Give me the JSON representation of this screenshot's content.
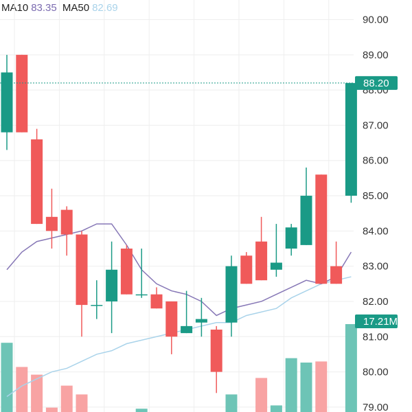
{
  "legend": {
    "ma10_label": "MA10",
    "ma10_value": "83.35",
    "ma50_label": "MA50",
    "ma50_value": "82.69"
  },
  "colors": {
    "up": "#1a9a86",
    "down": "#f05a5a",
    "up_volume": "#6dc4b6",
    "down_volume": "#f8a3a3",
    "ma10": "#8677b6",
    "ma50": "#a9d3ea",
    "grid": "#eeeeee",
    "last_price_line": "#1a9a86"
  },
  "chart_data": {
    "type": "candlestick",
    "y_axis": {
      "min": 78.9,
      "max": 90.4,
      "ticks": [
        "79.00",
        "80.00",
        "81.00",
        "82.00",
        "83.00",
        "84.00",
        "85.00",
        "86.00",
        "87.00",
        "88.00",
        "89.00",
        "90.00"
      ],
      "position": "right"
    },
    "last_price": {
      "value": 88.2,
      "label": "88.20"
    },
    "volume_label": "17.21M",
    "candles": [
      {
        "o": 86.8,
        "h": 89.0,
        "l": 86.3,
        "c": 88.5,
        "v": 0.63
      },
      {
        "o": 89.0,
        "h": 89.0,
        "l": 86.8,
        "c": 86.8,
        "v": 0.41
      },
      {
        "o": 86.6,
        "h": 86.9,
        "l": 84.2,
        "c": 84.2,
        "v": 0.34
      },
      {
        "o": 84.4,
        "h": 85.2,
        "l": 83.5,
        "c": 84.0,
        "v": 0.04
      },
      {
        "o": 84.6,
        "h": 84.7,
        "l": 83.3,
        "c": 83.9,
        "v": 0.24
      },
      {
        "o": 83.9,
        "h": 84.0,
        "l": 81.0,
        "c": 81.9,
        "v": 0.16
      },
      {
        "o": 81.9,
        "h": 82.6,
        "l": 81.5,
        "c": 81.9,
        "v": 0.0
      },
      {
        "o": 82.0,
        "h": 83.7,
        "l": 81.1,
        "c": 82.9,
        "v": 0.0
      },
      {
        "o": 83.5,
        "h": 83.6,
        "l": 82.2,
        "c": 82.2,
        "v": 0.0
      },
      {
        "o": 82.2,
        "h": 83.5,
        "l": 82.1,
        "c": 82.2,
        "v": 0.03
      },
      {
        "o": 82.2,
        "h": 82.4,
        "l": 81.8,
        "c": 81.8,
        "v": 0.0
      },
      {
        "o": 82.0,
        "h": 82.0,
        "l": 80.5,
        "c": 81.0,
        "v": 0.0
      },
      {
        "o": 81.1,
        "h": 82.3,
        "l": 81.1,
        "c": 81.3,
        "v": 0.0
      },
      {
        "o": 81.4,
        "h": 82.1,
        "l": 81.0,
        "c": 81.5,
        "v": 0.0
      },
      {
        "o": 81.2,
        "h": 81.3,
        "l": 79.4,
        "c": 80.0,
        "v": 0.0
      },
      {
        "o": 81.4,
        "h": 83.3,
        "l": 81.0,
        "c": 83.0,
        "v": 0.16
      },
      {
        "o": 83.3,
        "h": 83.4,
        "l": 82.5,
        "c": 82.5,
        "v": 0.0
      },
      {
        "o": 83.7,
        "h": 84.4,
        "l": 82.6,
        "c": 82.6,
        "v": 0.31
      },
      {
        "o": 82.9,
        "h": 84.2,
        "l": 82.7,
        "c": 83.1,
        "v": 0.06
      },
      {
        "o": 83.5,
        "h": 84.2,
        "l": 83.3,
        "c": 84.1,
        "v": 0.49
      },
      {
        "o": 83.6,
        "h": 85.8,
        "l": 83.6,
        "c": 85.0,
        "v": 0.45
      },
      {
        "o": 85.6,
        "h": 85.6,
        "l": 82.5,
        "c": 82.5,
        "v": 0.46
      },
      {
        "o": 83.0,
        "h": 83.7,
        "l": 82.5,
        "c": 82.5,
        "v": 0.0
      },
      {
        "o": 85.0,
        "h": 88.2,
        "l": 84.8,
        "c": 88.2,
        "v": 0.8
      }
    ],
    "ma10": [
      82.9,
      83.4,
      83.7,
      83.8,
      83.9,
      84.0,
      84.2,
      84.2,
      83.6,
      82.9,
      82.5,
      82.3,
      82.2,
      82.0,
      81.6,
      81.8,
      81.9,
      82.0,
      82.2,
      82.4,
      82.6,
      82.5,
      82.7,
      83.4
    ],
    "ma50": [
      79.3,
      79.6,
      79.8,
      80.0,
      80.1,
      80.3,
      80.5,
      80.6,
      80.8,
      80.9,
      81.0,
      81.1,
      81.2,
      81.3,
      81.4,
      81.4,
      81.6,
      81.7,
      81.8,
      82.1,
      82.3,
      82.5,
      82.6,
      82.7
    ]
  }
}
